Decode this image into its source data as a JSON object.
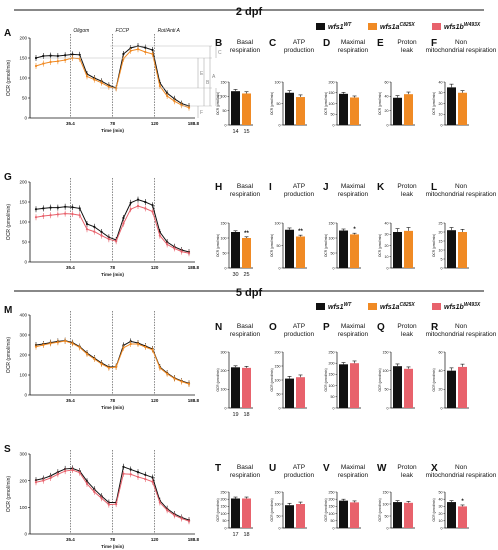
{
  "colors": {
    "wt": "#111111",
    "c825x": "#f08a24",
    "w493x": "#e8626c",
    "axis": "#111111"
  },
  "sections": [
    {
      "title": "2 dpf",
      "compare": "c825x",
      "legend": [
        {
          "label": "wfs1",
          "sup": "WT",
          "color": "#111111"
        },
        {
          "label": "wfs1a",
          "sup": "C825X",
          "color": "#f08a24"
        },
        {
          "label": "wfs1b",
          "sup": "W493X",
          "color": "#e8626c"
        }
      ]
    },
    {
      "title": "5 dpf",
      "compare": "w493x",
      "legend": [
        {
          "label": "wfs1",
          "sup": "WT",
          "color": "#111111"
        },
        {
          "label": "wfs1a",
          "sup": "C825X",
          "color": "#f08a24"
        },
        {
          "label": "wfs1b",
          "sup": "W493X",
          "color": "#e8626c"
        }
      ]
    }
  ],
  "chart_data": [
    {
      "panel": "A",
      "type": "line",
      "ylabel": "OCR (pmol/min)",
      "xlabel": "Time (min)",
      "ylim": [
        0,
        200
      ],
      "yticks": [
        0,
        50,
        100,
        150,
        200
      ],
      "xticks": [
        "35.4",
        "78",
        "120",
        "188.8"
      ],
      "injections": [
        "Oligom",
        "FCCP",
        "Rot/Anti A"
      ],
      "annotation_letters": [
        "A",
        "B",
        "C",
        "D",
        "E",
        "F"
      ],
      "series": [
        {
          "key": "wt",
          "values": [
            150,
            155,
            156,
            155,
            157,
            159,
            158,
            110,
            100,
            92,
            82,
            75,
            160,
            175,
            180,
            176,
            170,
            88,
            62,
            48,
            36,
            30
          ]
        },
        {
          "key": "c825x",
          "values": [
            130,
            136,
            140,
            142,
            145,
            150,
            148,
            104,
            96,
            88,
            78,
            74,
            148,
            168,
            172,
            165,
            160,
            80,
            55,
            42,
            32,
            26
          ]
        }
      ]
    },
    {
      "panel": "G",
      "type": "line",
      "ylabel": "OCR (pmol/min)",
      "xlabel": "Time (min)",
      "ylim": [
        0,
        200
      ],
      "yticks": [
        0,
        50,
        100,
        150,
        200
      ],
      "xticks": [
        "35.4",
        "78",
        "120",
        "188.8"
      ],
      "series": [
        {
          "key": "wt",
          "values": [
            132,
            134,
            136,
            136,
            138,
            137,
            134,
            95,
            88,
            75,
            62,
            55,
            110,
            148,
            156,
            150,
            142,
            75,
            50,
            38,
            30,
            25
          ]
        },
        {
          "key": "w493x",
          "values": [
            112,
            115,
            117,
            119,
            121,
            120,
            117,
            82,
            76,
            66,
            57,
            52,
            96,
            132,
            140,
            134,
            126,
            66,
            44,
            34,
            26,
            22
          ]
        }
      ]
    },
    {
      "panel": "M",
      "type": "line",
      "ylabel": "OCR (pmol/min)",
      "xlabel": "Time (min)",
      "ylim": [
        0,
        400
      ],
      "yticks": [
        0,
        100,
        200,
        300,
        400
      ],
      "xticks": [
        "35.4",
        "78",
        "120",
        "188.8"
      ],
      "series": [
        {
          "key": "wt",
          "values": [
            250,
            255,
            262,
            268,
            272,
            262,
            242,
            210,
            185,
            160,
            140,
            142,
            248,
            268,
            260,
            245,
            230,
            140,
            110,
            85,
            70,
            58
          ]
        },
        {
          "key": "c825x",
          "values": [
            242,
            250,
            258,
            264,
            270,
            258,
            238,
            205,
            180,
            155,
            136,
            140,
            236,
            255,
            255,
            240,
            226,
            136,
            106,
            82,
            67,
            55
          ]
        }
      ]
    },
    {
      "panel": "S",
      "type": "line",
      "ylabel": "OCR (pmol/min)",
      "xlabel": "Time (min)",
      "ylim": [
        0,
        300
      ],
      "yticks": [
        0,
        100,
        200,
        300
      ],
      "xticks": [
        "35.4",
        "78",
        "120",
        "188.8"
      ],
      "series": [
        {
          "key": "wt",
          "values": [
            202,
            208,
            218,
            232,
            244,
            246,
            236,
            198,
            168,
            142,
            118,
            118,
            252,
            242,
            232,
            222,
            212,
            125,
            95,
            75,
            62,
            52
          ]
        },
        {
          "key": "w493x",
          "values": [
            194,
            200,
            210,
            224,
            236,
            240,
            230,
            188,
            158,
            134,
            110,
            112,
            226,
            224,
            214,
            206,
            196,
            118,
            89,
            70,
            58,
            48
          ]
        }
      ]
    },
    {
      "panel": "B",
      "type": "bar",
      "title": "Basal respiration",
      "ylabel": "OCR (pmol/min)",
      "ylim": [
        0,
        150
      ],
      "yticks": [
        0,
        50,
        100,
        150
      ],
      "values": [
        118,
        110
      ],
      "errors": [
        6,
        6
      ],
      "n": [
        "14",
        "15"
      ],
      "sig": ""
    },
    {
      "panel": "C",
      "type": "bar",
      "title": "ATP production",
      "ylabel": "OCR (pmol/min)",
      "ylim": [
        0,
        100
      ],
      "yticks": [
        0,
        50,
        100
      ],
      "values": [
        75,
        65
      ],
      "errors": [
        5,
        5
      ],
      "sig": ""
    },
    {
      "panel": "D",
      "type": "bar",
      "title": "Maximal respiration",
      "ylabel": "OCR (pmol/min)",
      "ylim": [
        0,
        200
      ],
      "yticks": [
        0,
        50,
        100,
        150,
        200
      ],
      "values": [
        145,
        128
      ],
      "errors": [
        7,
        7
      ],
      "sig": ""
    },
    {
      "panel": "E",
      "type": "bar",
      "title": "Proton leak",
      "ylabel": "OCR (pmol/min)",
      "ylim": [
        0,
        60
      ],
      "yticks": [
        0,
        20,
        40,
        60
      ],
      "values": [
        38,
        43
      ],
      "errors": [
        3,
        3
      ],
      "sig": ""
    },
    {
      "panel": "F",
      "type": "bar",
      "title": "Non mitochondrial respiration",
      "ylabel": "OCR (pmol/min)",
      "ylim": [
        0,
        40
      ],
      "yticks": [
        0,
        10,
        20,
        30,
        40
      ],
      "values": [
        35,
        30
      ],
      "errors": [
        3,
        2
      ],
      "sig": ""
    },
    {
      "panel": "H",
      "type": "bar",
      "title": "Basal respiration",
      "ylabel": "OCR (pmol/min)",
      "ylim": [
        0,
        150
      ],
      "yticks": [
        0,
        50,
        100,
        150
      ],
      "values": [
        120,
        100
      ],
      "errors": [
        4,
        4
      ],
      "n": [
        "30",
        "25"
      ],
      "sig": "**"
    },
    {
      "panel": "I",
      "type": "bar",
      "title": "ATP production",
      "ylabel": "OCR (pmol/min)",
      "ylim": [
        0,
        100
      ],
      "yticks": [
        0,
        50,
        100
      ],
      "values": [
        85,
        70
      ],
      "errors": [
        4,
        3
      ],
      "sig": "**"
    },
    {
      "panel": "J",
      "type": "bar",
      "title": "Maximal respiration",
      "ylabel": "OCR (pmol/min)",
      "ylim": [
        0,
        150
      ],
      "yticks": [
        0,
        50,
        100,
        150
      ],
      "values": [
        125,
        112
      ],
      "errors": [
        5,
        4
      ],
      "sig": "*"
    },
    {
      "panel": "K",
      "type": "bar",
      "title": "Proton leak",
      "ylabel": "OCR (pmol/min)",
      "ylim": [
        0,
        40
      ],
      "yticks": [
        0,
        10,
        20,
        30,
        40
      ],
      "values": [
        32,
        33
      ],
      "errors": [
        3,
        3
      ],
      "sig": ""
    },
    {
      "panel": "L",
      "type": "bar",
      "title": "Non mitochondrial respiration",
      "ylabel": "OCR (pmol/min)",
      "ylim": [
        0,
        25
      ],
      "yticks": [
        0,
        5,
        10,
        15,
        20,
        25
      ],
      "values": [
        21,
        20
      ],
      "errors": [
        1.5,
        1.5
      ],
      "sig": ""
    },
    {
      "panel": "N",
      "type": "bar",
      "title": "Basal respiration",
      "ylabel": "OCR (pmol/min)",
      "ylim": [
        0,
        300
      ],
      "yticks": [
        0,
        100,
        200,
        300
      ],
      "values": [
        218,
        215
      ],
      "errors": [
        8,
        8
      ],
      "n": [
        "19",
        "18"
      ],
      "sig": ""
    },
    {
      "panel": "O",
      "type": "bar",
      "title": "ATP production",
      "ylabel": "OCR (pmol/min)",
      "ylim": [
        0,
        200
      ],
      "yticks": [
        0,
        50,
        100,
        150,
        200
      ],
      "values": [
        105,
        110
      ],
      "errors": [
        8,
        8
      ],
      "sig": ""
    },
    {
      "panel": "P",
      "type": "bar",
      "title": "Maximal respiration",
      "ylabel": "OCR (pmol/min)",
      "ylim": [
        0,
        250
      ],
      "yticks": [
        0,
        50,
        100,
        150,
        200,
        250
      ],
      "values": [
        195,
        200
      ],
      "errors": [
        8,
        10
      ],
      "sig": ""
    },
    {
      "panel": "Q",
      "type": "bar",
      "title": "Proton leak",
      "ylabel": "OCR (pmol/min)",
      "ylim": [
        0,
        150
      ],
      "yticks": [
        0,
        50,
        100,
        150
      ],
      "values": [
        112,
        105
      ],
      "errors": [
        6,
        5
      ],
      "sig": ""
    },
    {
      "panel": "R",
      "type": "bar",
      "title": "Non mitochondrial respiration",
      "ylabel": "OCR (pmol/min)",
      "ylim": [
        0,
        60
      ],
      "yticks": [
        0,
        20,
        40,
        60
      ],
      "values": [
        40,
        44
      ],
      "errors": [
        3,
        3
      ],
      "sig": ""
    },
    {
      "panel": "T",
      "type": "bar",
      "title": "Basal respiration",
      "ylabel": "OCR (pmol/min)",
      "ylim": [
        0,
        250
      ],
      "yticks": [
        0,
        50,
        100,
        150,
        200,
        250
      ],
      "values": [
        205,
        205
      ],
      "errors": [
        10,
        10
      ],
      "n": [
        "17",
        "18"
      ],
      "sig": ""
    },
    {
      "panel": "U",
      "type": "bar",
      "title": "ATP production",
      "ylabel": "OCR (pmol/min)",
      "ylim": [
        0,
        150
      ],
      "yticks": [
        0,
        50,
        100,
        150
      ],
      "values": [
        95,
        100
      ],
      "errors": [
        8,
        8
      ],
      "sig": ""
    },
    {
      "panel": "V",
      "type": "bar",
      "title": "Maximal respiration",
      "ylabel": "OCR (pmol/min)",
      "ylim": [
        0,
        250
      ],
      "yticks": [
        0,
        50,
        100,
        150,
        200,
        250
      ],
      "values": [
        190,
        178
      ],
      "errors": [
        10,
        10
      ],
      "sig": ""
    },
    {
      "panel": "W",
      "type": "bar",
      "title": "Proton leak",
      "ylabel": "OCR (pmol/min)",
      "ylim": [
        0,
        150
      ],
      "yticks": [
        0,
        50,
        100,
        150
      ],
      "values": [
        108,
        105
      ],
      "errors": [
        6,
        6
      ],
      "sig": ""
    },
    {
      "panel": "X",
      "type": "bar",
      "title": "Non mitochondrial respiration",
      "ylabel": "OCR (pmol/min)",
      "ylim": [
        0,
        50
      ],
      "yticks": [
        0,
        10,
        20,
        30,
        40,
        50
      ],
      "values": [
        36,
        30
      ],
      "errors": [
        2,
        2
      ],
      "sig": "*"
    }
  ]
}
